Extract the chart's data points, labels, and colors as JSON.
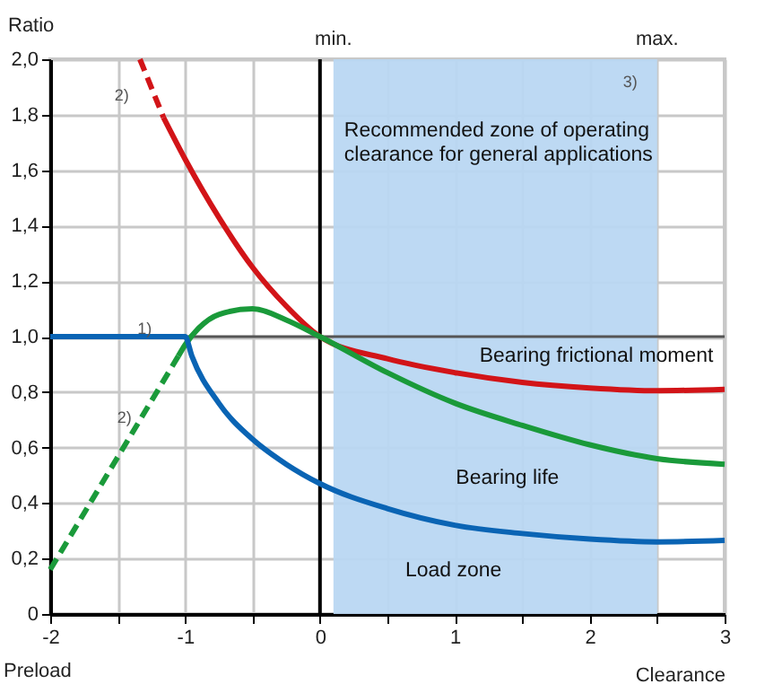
{
  "chart_data": {
    "type": "line",
    "ylabel": "Ratio",
    "xlabel": "Clearance",
    "xlim": [
      -2,
      3
    ],
    "xticks": [
      -2,
      {
        "value": -1.5,
        "label": null
      },
      -1,
      {
        "value": -0.5,
        "label": null
      },
      0,
      {
        "value": 0.5,
        "label": null
      },
      1,
      {
        "value": 1.5,
        "label": null
      },
      2,
      {
        "value": 2.5,
        "label": null
      },
      3
    ],
    "ylim": [
      0,
      2
    ],
    "yticks": [
      0,
      {
        "value": 0.2,
        "label": "0,2"
      },
      {
        "value": 0.4,
        "label": "0,4"
      },
      {
        "value": 0.6,
        "label": "0,6"
      },
      {
        "value": 0.8,
        "label": "0,8"
      },
      {
        "value": 1,
        "label": "1,0"
      },
      {
        "value": 1.2,
        "label": "1,2"
      },
      {
        "value": 1.4,
        "label": "1,4"
      },
      {
        "value": 1.6,
        "label": "1,6"
      },
      {
        "value": 1.8,
        "label": "1,8"
      },
      {
        "value": 2,
        "label": "2,0"
      }
    ],
    "grid": true,
    "marker": "none",
    "series": [
      {
        "name": "Bearing frictional moment",
        "color": "#d21418",
        "line_style": "solid",
        "x": [
          -1.16,
          -1,
          -0.75,
          -0.5,
          -0.25,
          0,
          0.5,
          1,
          1.5,
          2,
          2.5,
          3
        ],
        "values": [
          1.79,
          1.64,
          1.43,
          1.25,
          1.11,
          1.0,
          0.92,
          0.87,
          0.835,
          0.815,
          0.805,
          0.81
        ]
      },
      {
        "color": "#d21418",
        "line_style": "dashed",
        "x": [
          -1.335,
          -1.16
        ],
        "values": [
          2.0,
          1.79
        ]
      },
      {
        "name": "Bearing life",
        "color": "#1a9a3a",
        "line_style": "solid",
        "x": [
          -1.05,
          -1,
          -0.9,
          -0.75,
          -0.5,
          -0.25,
          0,
          0.5,
          1,
          1.5,
          2,
          2.5,
          3
        ],
        "values": [
          0.93,
          0.97,
          1.03,
          1.08,
          1.1,
          1.06,
          1.0,
          0.87,
          0.76,
          0.68,
          0.61,
          0.56,
          0.54
        ]
      },
      {
        "color": "#1a9a3a",
        "line_style": "dashed",
        "x": [
          -2,
          -1.05
        ],
        "values": [
          0.16,
          0.93
        ]
      },
      {
        "name": "Load zone",
        "color": "#0a64b4",
        "line_style": "solid",
        "x": [
          -2,
          -1,
          -0.95,
          -0.75,
          -0.5,
          -0.25,
          0,
          0.5,
          1,
          1.5,
          2,
          2.5,
          3
        ],
        "values": [
          1,
          1,
          0.93,
          0.76,
          0.63,
          0.54,
          0.47,
          0.38,
          0.32,
          0.29,
          0.27,
          0.26,
          0.265
        ]
      }
    ],
    "ref_lines": [
      {
        "axis": "x",
        "value": 0,
        "color": "#000000"
      },
      {
        "axis": "y",
        "value": 1,
        "color": "#555555"
      }
    ],
    "bands": [
      {
        "axis": "x",
        "from": 0.1,
        "to": 2.5,
        "label": "Recommended zone of operating\nclearance for general applications",
        "color": "#b9d7f2"
      }
    ],
    "annotations": [
      "Preload",
      {
        "text": "min.",
        "x": 0.1,
        "y": 2
      },
      {
        "text": "max.",
        "x": 2.5,
        "y": 2
      },
      {
        "text": "1)",
        "x": -1.3,
        "y": 1.03
      },
      "2)",
      "2)",
      "3)"
    ]
  }
}
